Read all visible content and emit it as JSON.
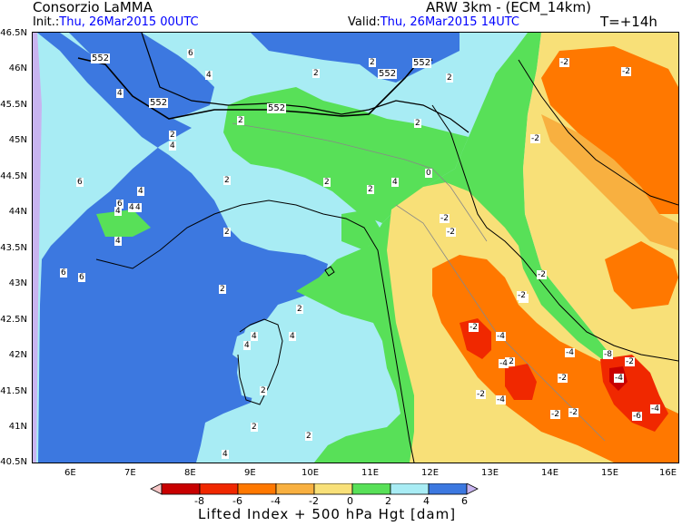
{
  "header": {
    "org": "Consorzio LaMMA",
    "model": "ARW 3km - (ECM_14km)",
    "init_label": "Init.:",
    "init_value": "Thu, 26Mar2015 00UTC",
    "valid_label": "Valid:",
    "valid_value": "Thu, 26Mar2015 14UTC",
    "forecast_step": "T=+14h"
  },
  "axes": {
    "lat_ticks": [
      "46.5N",
      "46N",
      "45.5N",
      "45N",
      "44.5N",
      "44N",
      "43.5N",
      "43N",
      "42.5N",
      "42N",
      "41.5N",
      "41N",
      "40.5N"
    ],
    "lon_ticks": [
      "6E",
      "7E",
      "8E",
      "9E",
      "10E",
      "11E",
      "12E",
      "13E",
      "14E",
      "15E",
      "16E"
    ]
  },
  "colorbar": {
    "labels": [
      "-8",
      "-6",
      "-4",
      "-2",
      "0",
      "2",
      "4",
      "6"
    ],
    "colors": [
      "#f8c8c8",
      "#c80000",
      "#f02800",
      "#ff7800",
      "#f8b040",
      "#f8e078",
      "#58e058",
      "#a8ecf4",
      "#3c78e0",
      "#c8b4f0"
    ],
    "title": "Lifted Index + 500 hPa Hgt [dam]"
  },
  "map": {
    "colors": {
      "violet": "#c8b4f0",
      "deep_blue": "#3c78e0",
      "light_cyan": "#a8ecf4",
      "green": "#58e058",
      "light_yellow": "#f8e078",
      "yellow_orange": "#f8b040",
      "orange": "#ff7800",
      "red_orange": "#f02800",
      "dark_red": "#c80000"
    },
    "height_labels": [
      "552",
      "552",
      "552",
      "552",
      "552"
    ],
    "li_labels": [
      "6",
      "4",
      "4",
      "6",
      "6",
      "4",
      "2",
      "2",
      "2",
      "2",
      "4",
      "2",
      "6",
      "4",
      "2",
      "2",
      "2",
      "2",
      "2",
      "4",
      "2",
      "4",
      "4",
      "2",
      "6",
      "4",
      "4",
      "4",
      "4",
      "2",
      "2",
      "2",
      "4",
      "0",
      "-2",
      "-2",
      "-2",
      "-2",
      "-2",
      "-2",
      "-2",
      "-2",
      "-4",
      "-4",
      "-4",
      "-4",
      "-2",
      "-2",
      "-2",
      "-2",
      "-2",
      "-8",
      "-4",
      "-4",
      "-6",
      "-2",
      "-2"
    ]
  }
}
